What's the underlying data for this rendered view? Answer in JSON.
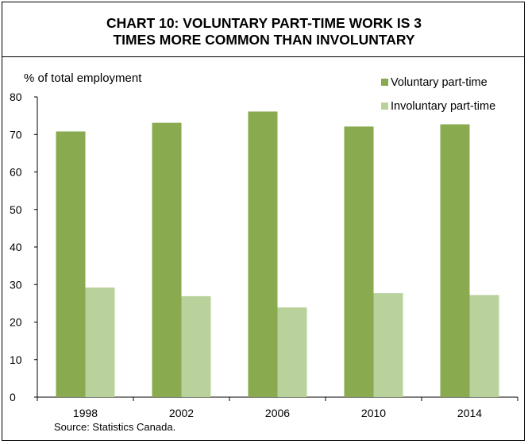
{
  "chart_data": {
    "type": "bar",
    "title_lines": [
      "CHART 10: VOLUNTARY PART-TIME WORK IS 3",
      "TIMES MORE COMMON THAN INVOLUNTARY"
    ],
    "ylabel": "% of total employment",
    "xlabel": "",
    "categories": [
      "1998",
      "2002",
      "2006",
      "2010",
      "2014"
    ],
    "series": [
      {
        "name": "Voluntary part-time",
        "values": [
          70.8,
          73.1,
          76.1,
          72.1,
          72.7
        ],
        "color": "#8aaa50"
      },
      {
        "name": "Involuntary part-time",
        "values": [
          29.2,
          26.9,
          23.9,
          27.7,
          27.2
        ],
        "color": "#b9d19a"
      }
    ],
    "ylim": [
      0,
      80
    ],
    "yticks": [
      0,
      10,
      20,
      30,
      40,
      50,
      60,
      70,
      80
    ],
    "grid": false,
    "legend": "top-right",
    "source": "Source: Statistics Canada."
  }
}
